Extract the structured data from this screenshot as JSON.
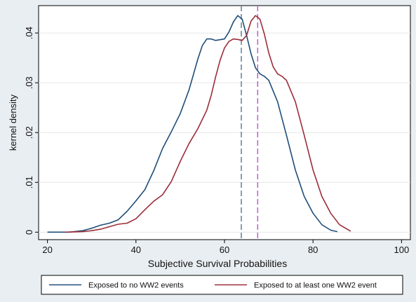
{
  "chart_data": {
    "type": "line",
    "title": "",
    "xlabel": "Subjective Survival Probabilities",
    "ylabel": "kernel density",
    "xlim": [
      18,
      102
    ],
    "ylim": [
      -0.0015,
      0.0455
    ],
    "x_ticks": [
      20,
      40,
      60,
      80,
      100
    ],
    "y_ticks": [
      0,
      0.01,
      0.02,
      0.03,
      0.04
    ],
    "x_tick_labels": [
      "20",
      "40",
      "60",
      "80",
      "100"
    ],
    "y_tick_labels": [
      "0",
      ".01",
      ".02",
      ".03",
      ".04"
    ],
    "grid": true,
    "legend_position": "bottom",
    "series": [
      {
        "name": "Exposed to no WW2 events",
        "color": "#1f4e79",
        "x": [
          20,
          25,
          28,
          30,
          32,
          34,
          36,
          38,
          40,
          42,
          44,
          46,
          48,
          50,
          52,
          54,
          55,
          56,
          57,
          58,
          60,
          61,
          62,
          63,
          64,
          65,
          66,
          67,
          68,
          69,
          70,
          72,
          74,
          76,
          78,
          80,
          82,
          84,
          85.5
        ],
        "y": [
          0.0,
          0.0,
          0.0003,
          0.0008,
          0.0014,
          0.0018,
          0.0025,
          0.0042,
          0.0063,
          0.0085,
          0.0123,
          0.0168,
          0.0202,
          0.0238,
          0.0286,
          0.0348,
          0.0375,
          0.0388,
          0.0388,
          0.0385,
          0.0388,
          0.0402,
          0.0422,
          0.0435,
          0.0428,
          0.0395,
          0.0358,
          0.033,
          0.0318,
          0.0313,
          0.0305,
          0.0262,
          0.0195,
          0.0125,
          0.0072,
          0.0038,
          0.0015,
          0.0004,
          0.0001
        ]
      },
      {
        "name": "Exposed to at least one WW2 event",
        "color": "#9b2d3a",
        "x": [
          24,
          28,
          30,
          32,
          34,
          36,
          38,
          40,
          42,
          44,
          46,
          48,
          50,
          52,
          54,
          56,
          57,
          58,
          59,
          60,
          61,
          62,
          63,
          64,
          65,
          66,
          67,
          68,
          69,
          70,
          71,
          72,
          73,
          74,
          76,
          78,
          80,
          82,
          84,
          86,
          88.5
        ],
        "y": [
          0.0,
          0.0001,
          0.0003,
          0.0006,
          0.0011,
          0.0016,
          0.0018,
          0.0027,
          0.0045,
          0.0062,
          0.0075,
          0.0102,
          0.0142,
          0.0178,
          0.0208,
          0.0245,
          0.0275,
          0.0312,
          0.0345,
          0.037,
          0.0383,
          0.0388,
          0.0387,
          0.0385,
          0.0395,
          0.0424,
          0.0435,
          0.0428,
          0.0398,
          0.036,
          0.0332,
          0.0318,
          0.0313,
          0.0305,
          0.0262,
          0.0195,
          0.0125,
          0.0072,
          0.0038,
          0.0015,
          0.0002
        ]
      }
    ],
    "reference_lines": [
      {
        "x": 63.8,
        "color": "#5f7f96",
        "style": "dashed"
      },
      {
        "x": 67.5,
        "color": "#c05ccc",
        "style": "dashed"
      }
    ]
  }
}
